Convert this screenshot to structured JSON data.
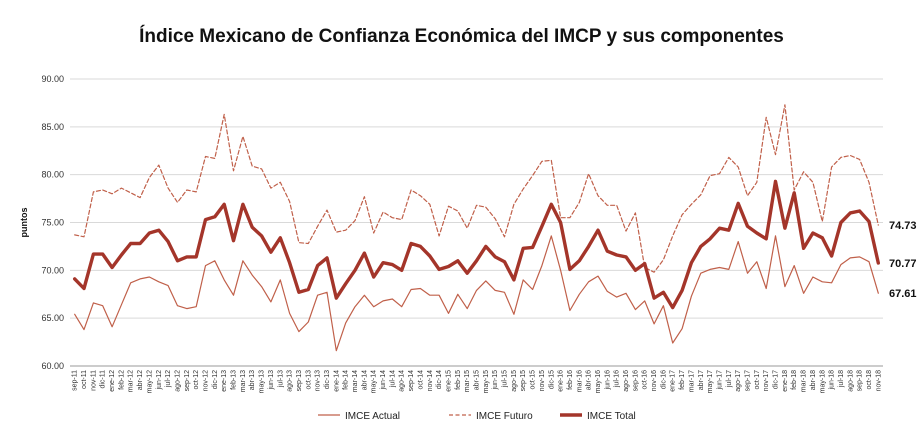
{
  "chart_data": {
    "type": "line",
    "title": "Índice Mexicano de Confianza Económica del IMCP y sus componentes",
    "xlabel": "",
    "ylabel": "puntos",
    "ylim": [
      60,
      90
    ],
    "yticks": [
      "60.00",
      "65.00",
      "70.00",
      "75.00",
      "80.00",
      "85.00",
      "90.00"
    ],
    "grid": "horizontal",
    "legend": "bottom",
    "colors": {
      "IMCE Actual": "#c0604a",
      "IMCE Futuro": "#c0604a",
      "IMCE Total": "#a4352a"
    },
    "x": [
      "sep-11",
      "oct-11",
      "nov-11",
      "dic-11",
      "ene-12",
      "feb-12",
      "mar-12",
      "abr-12",
      "may-12",
      "jun-12",
      "jul-12",
      "ago-12",
      "sep-12",
      "oct-12",
      "nov-12",
      "dic-12",
      "ene-13",
      "feb-13",
      "mar-13",
      "abr-13",
      "may-13",
      "jun-13",
      "jul-13",
      "ago-13",
      "sep-13",
      "oct-13",
      "nov-13",
      "dic-13",
      "ene-14",
      "feb-14",
      "mar-14",
      "abr-14",
      "may-14",
      "jun-14",
      "jul-14",
      "ago-14",
      "sep-14",
      "oct-14",
      "nov-14",
      "dic-14",
      "ene-15",
      "feb-15",
      "mar-15",
      "abr-15",
      "may-15",
      "jun-15",
      "jul-15",
      "ago-15",
      "sep-15",
      "oct-15",
      "nov-15",
      "dic-15",
      "ene-16",
      "feb-16",
      "mar-16",
      "abr-16",
      "may-16",
      "jun-16",
      "jul-16",
      "ago-16",
      "sep-16",
      "oct-16",
      "nov-16",
      "dic-16",
      "ene-17",
      "feb-17",
      "mar-17",
      "abr-17",
      "may-17",
      "jun-17",
      "jul-17",
      "ago-17",
      "sep-17",
      "oct-17",
      "nov-17",
      "dic-17",
      "ene-18",
      "feb-18",
      "mar-18",
      "abr-18",
      "may-18",
      "jun-18",
      "jul-18",
      "ago-18",
      "sep-18",
      "oct-18",
      "nov-18"
    ],
    "series": [
      {
        "name": "IMCE Actual",
        "style": "thin",
        "values": [
          65.4,
          63.8,
          66.6,
          66.3,
          64.1,
          66.4,
          68.7,
          69.1,
          69.3,
          68.8,
          68.4,
          66.3,
          66.0,
          66.2,
          70.5,
          71.0,
          69.0,
          67.4,
          71.0,
          69.5,
          68.3,
          66.7,
          69.0,
          65.5,
          63.6,
          64.6,
          67.4,
          67.7,
          61.6,
          64.5,
          66.2,
          67.4,
          66.2,
          66.8,
          67.0,
          66.2,
          68.0,
          68.1,
          67.4,
          67.4,
          65.5,
          67.5,
          66.0,
          67.9,
          68.9,
          67.9,
          67.7,
          65.4,
          69.0,
          68.0,
          70.5,
          73.6,
          70.0,
          65.8,
          67.5,
          68.8,
          69.4,
          67.8,
          67.2,
          67.6,
          65.9,
          66.8,
          64.4,
          66.3,
          62.4,
          63.9,
          67.3,
          69.7,
          70.1,
          70.3,
          70.1,
          73.0,
          69.7,
          70.9,
          68.1,
          73.6,
          68.3,
          70.5,
          67.6,
          69.3,
          68.8,
          68.7,
          70.6,
          71.3,
          71.4,
          70.9,
          67.61
        ]
      },
      {
        "name": "IMCE Futuro",
        "style": "dashed",
        "values": [
          73.7,
          73.5,
          78.2,
          78.4,
          78.0,
          78.6,
          78.1,
          77.6,
          79.7,
          81.0,
          78.6,
          77.1,
          78.4,
          78.2,
          81.9,
          81.7,
          86.3,
          80.4,
          84.0,
          80.9,
          80.6,
          78.6,
          79.2,
          77.2,
          72.9,
          72.8,
          74.6,
          76.3,
          74.0,
          74.2,
          75.2,
          77.7,
          73.9,
          76.1,
          75.5,
          75.3,
          78.4,
          77.8,
          76.9,
          73.6,
          76.7,
          76.2,
          74.4,
          76.8,
          76.6,
          75.4,
          73.5,
          76.9,
          78.5,
          79.9,
          81.4,
          81.5,
          75.5,
          75.5,
          77.1,
          80.1,
          77.8,
          76.8,
          76.8,
          74.1,
          76.0,
          70.3,
          69.8,
          71.1,
          73.6,
          75.8,
          76.9,
          77.9,
          79.9,
          80.1,
          81.8,
          80.8,
          77.8,
          79.2,
          86.0,
          82.1,
          87.3,
          78.4,
          80.3,
          79.2,
          75.1,
          80.8,
          81.8,
          82.0,
          81.6,
          79.2,
          74.73
        ]
      },
      {
        "name": "IMCE Total",
        "style": "thick",
        "values": [
          69.1,
          68.1,
          71.7,
          71.7,
          70.3,
          71.6,
          72.8,
          72.8,
          73.9,
          74.2,
          73.0,
          71.0,
          71.4,
          71.4,
          75.3,
          75.6,
          76.9,
          73.1,
          76.9,
          74.5,
          73.6,
          71.9,
          73.4,
          70.8,
          67.7,
          68.0,
          70.5,
          71.3,
          67.1,
          68.6,
          70.0,
          71.8,
          69.3,
          70.8,
          70.6,
          70.0,
          72.8,
          72.5,
          71.5,
          70.1,
          70.4,
          71.0,
          69.7,
          71.0,
          72.5,
          71.4,
          70.9,
          69.0,
          72.3,
          72.4,
          74.6,
          76.9,
          75.0,
          70.1,
          71.0,
          72.5,
          74.2,
          72.0,
          71.6,
          71.4,
          70.0,
          70.7,
          67.1,
          67.7,
          66.1,
          67.9,
          70.8,
          72.5,
          73.3,
          74.4,
          74.2,
          77.0,
          74.6,
          73.9,
          73.3,
          79.3,
          74.4,
          78.1,
          72.3,
          73.9,
          73.4,
          71.5,
          75.0,
          76.0,
          76.2,
          75.1,
          70.77
        ]
      }
    ],
    "end_labels": [
      "74.73",
      "70.77",
      "67.61"
    ]
  }
}
